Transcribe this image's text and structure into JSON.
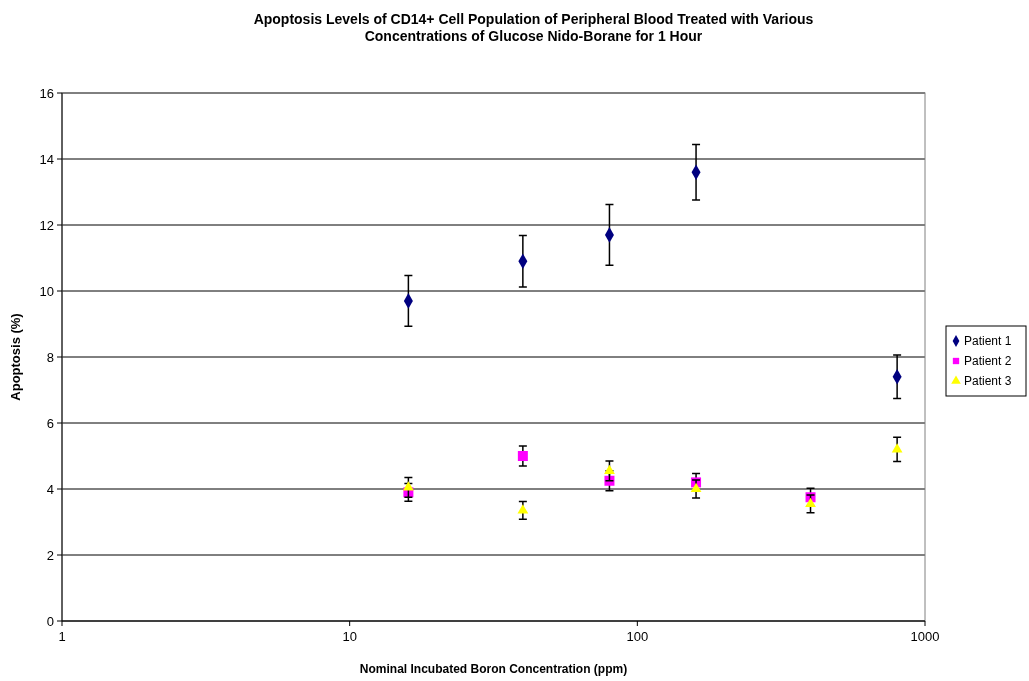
{
  "chart_data": {
    "type": "scatter",
    "title": "Apoptosis Levels of CD14+ Cell Population of Peripheral Blood Treated with Various Concentrations of Glucose Nido-Borane for 1 Hour",
    "xlabel": "Nominal Incubated Boron Concentration (ppm)",
    "ylabel": "Apoptosis (%)",
    "log": "x",
    "xlim": [
      1,
      1000
    ],
    "xticks": [
      1,
      10,
      100,
      1000
    ],
    "ylim": [
      0,
      16
    ],
    "yticks": [
      0,
      2,
      4,
      6,
      8,
      10,
      12,
      14,
      16
    ],
    "grid": "y",
    "legend": "right",
    "series": [
      {
        "name": "Patient 1",
        "color": "#000080",
        "marker": "diamond",
        "x": [
          16,
          40,
          80,
          160,
          800
        ],
        "values": [
          9.7,
          10.9,
          11.7,
          13.6,
          7.4
        ],
        "errors": [
          0.77,
          0.78,
          0.92,
          0.84,
          0.66
        ]
      },
      {
        "name": "Patient 2",
        "color": "#ff00ff",
        "marker": "square",
        "x": [
          16,
          40,
          80,
          160,
          400
        ],
        "values": [
          3.9,
          5.0,
          4.25,
          4.2,
          3.75
        ],
        "errors": [
          0.27,
          0.3,
          0.3,
          0.27,
          0.27
        ]
      },
      {
        "name": "Patient 3",
        "color": "#ffff00",
        "marker": "triangle",
        "x": [
          16,
          40,
          80,
          160,
          400,
          800
        ],
        "values": [
          4.05,
          3.35,
          4.55,
          4.0,
          3.55,
          5.2
        ],
        "errors": [
          0.3,
          0.27,
          0.3,
          0.27,
          0.27,
          0.37
        ]
      }
    ]
  }
}
